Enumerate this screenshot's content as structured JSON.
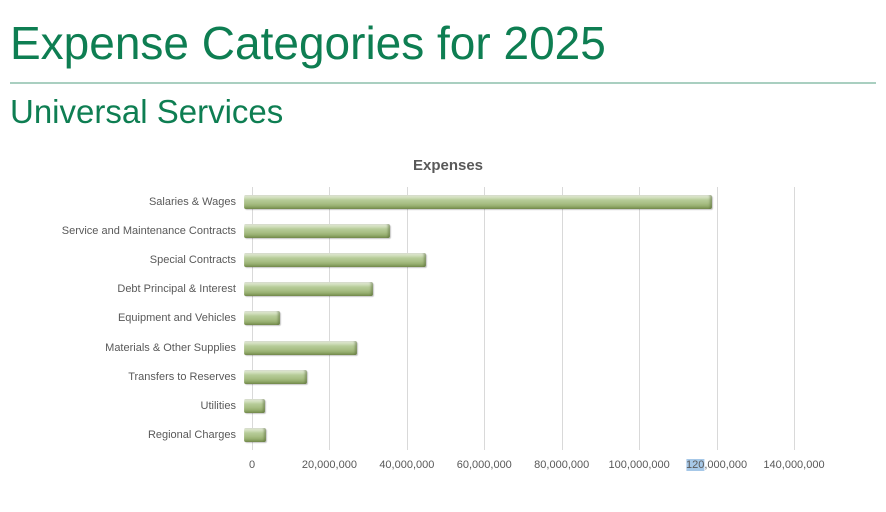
{
  "header": {
    "title": "Expense Categories for 2025",
    "subtitle": "Universal Services",
    "accent_color": "#0e7e52",
    "divider_color": "#a9cfc0"
  },
  "chart_data": {
    "type": "bar",
    "orientation": "horizontal",
    "title": "Expenses",
    "categories": [
      "Salaries & Wages",
      "Service and Maintenance Contracts",
      "Special Contracts",
      "Debt Principal & Interest",
      "Equipment and Vehicles",
      "Materials & Other Supplies",
      "Transfers to Reserves",
      "Utilities",
      "Regional Charges"
    ],
    "values": [
      120800000,
      37700000,
      47000000,
      33400000,
      9400000,
      29300000,
      16400000,
      5300000,
      5800000
    ],
    "xlim": [
      0,
      140000000
    ],
    "x_tick_step": 20000000,
    "x_tick_labels": [
      "0",
      "20,000,000",
      "40,000,000",
      "60,000,000",
      "80,000,000",
      "100,000,000",
      "120,000,000",
      "140,000,000"
    ],
    "highlighted_tick": {
      "label": "120,000,000",
      "highlighted_part": "120",
      "highlight_color": "#a6c8e8"
    },
    "bar_color": "#aec489",
    "gridline_color": "#d9d9d9",
    "grid": true,
    "legend": false,
    "xlabel": "",
    "ylabel": ""
  }
}
